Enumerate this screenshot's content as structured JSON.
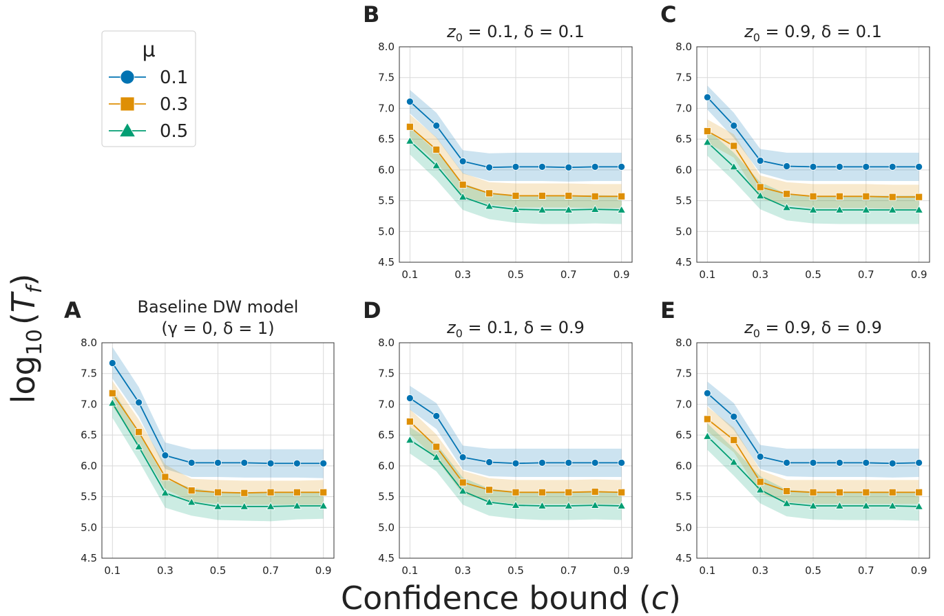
{
  "figure": {
    "xlabel_text": "Confidence bound (",
    "xlabel_var": "c",
    "xlabel_close": ")",
    "ylabel_prefix": "log",
    "ylabel_sub": "10",
    "ylabel_var": "T",
    "ylabel_varsub": "f"
  },
  "legend": {
    "title": "μ",
    "entries": [
      {
        "label": "0.1",
        "color": "#0173b2",
        "marker": "circle"
      },
      {
        "label": "0.3",
        "color": "#de8f05",
        "marker": "square"
      },
      {
        "label": "0.5",
        "color": "#029e73",
        "marker": "triangle"
      }
    ]
  },
  "chart_data": [
    {
      "panel": "A",
      "title_line1": "Baseline DW model",
      "title_line2": "(γ = 0, δ = 1)",
      "type": "line",
      "x": [
        0.1,
        0.2,
        0.3,
        0.4,
        0.5,
        0.6,
        0.7,
        0.8,
        0.9
      ],
      "xticks": [
        "0.1",
        "0.3",
        "0.5",
        "0.7",
        "0.9"
      ],
      "yticks": [
        "4.5",
        "5.0",
        "5.5",
        "6.0",
        "6.5",
        "7.0",
        "7.5",
        "8.0"
      ],
      "ylim": [
        4.5,
        8.0
      ],
      "grid": true,
      "series": [
        {
          "name": "0.1",
          "values": [
            7.67,
            7.03,
            6.17,
            6.05,
            6.05,
            6.05,
            6.04,
            6.04,
            6.04
          ],
          "lower": [
            7.42,
            6.8,
            5.95,
            5.82,
            5.82,
            5.81,
            5.81,
            5.81,
            5.8
          ],
          "upper": [
            7.93,
            7.28,
            6.38,
            6.27,
            6.27,
            6.27,
            6.27,
            6.27,
            6.27
          ]
        },
        {
          "name": "0.3",
          "values": [
            7.18,
            6.55,
            5.82,
            5.6,
            5.57,
            5.56,
            5.57,
            5.57,
            5.57
          ],
          "lower": [
            6.97,
            6.34,
            5.62,
            5.42,
            5.38,
            5.37,
            5.37,
            5.37,
            5.37
          ],
          "upper": [
            7.38,
            6.75,
            6.02,
            5.79,
            5.77,
            5.76,
            5.76,
            5.76,
            5.77
          ]
        },
        {
          "name": "0.5",
          "values": [
            7.02,
            6.31,
            5.56,
            5.41,
            5.34,
            5.34,
            5.34,
            5.35,
            5.35
          ],
          "lower": [
            6.78,
            6.08,
            5.32,
            5.19,
            5.12,
            5.11,
            5.1,
            5.13,
            5.14
          ],
          "upper": [
            7.25,
            6.54,
            5.78,
            5.64,
            5.57,
            5.57,
            5.56,
            5.58,
            5.58
          ]
        }
      ]
    },
    {
      "panel": "B",
      "title_z": "z",
      "title_z_sub": "0",
      "title_rest": " = 0.1, δ = 0.1",
      "type": "line",
      "x": [
        0.1,
        0.2,
        0.3,
        0.4,
        0.5,
        0.6,
        0.7,
        0.8,
        0.9
      ],
      "xticks": [
        "0.1",
        "0.3",
        "0.5",
        "0.7",
        "0.9"
      ],
      "yticks": [
        "4.5",
        "5.0",
        "5.5",
        "6.0",
        "6.5",
        "7.0",
        "7.5",
        "8.0"
      ],
      "ylim": [
        4.5,
        8.0
      ],
      "grid": true,
      "series": [
        {
          "name": "0.1",
          "values": [
            7.11,
            6.72,
            6.14,
            6.04,
            6.05,
            6.05,
            6.04,
            6.05,
            6.05
          ],
          "lower": [
            6.92,
            6.52,
            5.94,
            5.82,
            5.82,
            5.82,
            5.81,
            5.82,
            5.82
          ],
          "upper": [
            7.3,
            6.93,
            6.32,
            6.27,
            6.28,
            6.28,
            6.28,
            6.28,
            6.28
          ]
        },
        {
          "name": "0.3",
          "values": [
            6.7,
            6.33,
            5.76,
            5.62,
            5.58,
            5.58,
            5.58,
            5.57,
            5.57
          ],
          "lower": [
            6.5,
            6.13,
            5.57,
            5.44,
            5.39,
            5.39,
            5.39,
            5.38,
            5.38
          ],
          "upper": [
            6.9,
            6.53,
            5.95,
            5.8,
            5.78,
            5.78,
            5.78,
            5.77,
            5.77
          ]
        },
        {
          "name": "0.5",
          "values": [
            6.47,
            6.07,
            5.56,
            5.41,
            5.36,
            5.35,
            5.35,
            5.36,
            5.35
          ],
          "lower": [
            6.25,
            5.84,
            5.35,
            5.2,
            5.14,
            5.12,
            5.12,
            5.13,
            5.12
          ],
          "upper": [
            6.68,
            6.3,
            5.78,
            5.63,
            5.59,
            5.58,
            5.58,
            5.59,
            5.58
          ]
        }
      ]
    },
    {
      "panel": "C",
      "title_z": "z",
      "title_z_sub": "0",
      "title_rest": " = 0.9, δ = 0.1",
      "type": "line",
      "x": [
        0.1,
        0.2,
        0.3,
        0.4,
        0.5,
        0.6,
        0.7,
        0.8,
        0.9
      ],
      "xticks": [
        "0.1",
        "0.3",
        "0.5",
        "0.7",
        "0.9"
      ],
      "yticks": [
        "4.5",
        "5.0",
        "5.5",
        "6.0",
        "6.5",
        "7.0",
        "7.5",
        "8.0"
      ],
      "ylim": [
        4.5,
        8.0
      ],
      "grid": true,
      "series": [
        {
          "name": "0.1",
          "values": [
            7.18,
            6.72,
            6.15,
            6.06,
            6.05,
            6.05,
            6.05,
            6.05,
            6.05
          ],
          "lower": [
            6.98,
            6.52,
            5.95,
            5.83,
            5.82,
            5.82,
            5.82,
            5.82,
            5.82
          ],
          "upper": [
            7.37,
            6.93,
            6.34,
            6.28,
            6.28,
            6.28,
            6.28,
            6.28,
            6.28
          ]
        },
        {
          "name": "0.3",
          "values": [
            6.63,
            6.39,
            5.72,
            5.61,
            5.57,
            5.57,
            5.57,
            5.56,
            5.56
          ],
          "lower": [
            6.44,
            6.2,
            5.53,
            5.43,
            5.38,
            5.38,
            5.38,
            5.37,
            5.37
          ],
          "upper": [
            6.82,
            6.58,
            5.91,
            5.8,
            5.77,
            5.77,
            5.77,
            5.76,
            5.76
          ]
        },
        {
          "name": "0.5",
          "values": [
            6.45,
            6.05,
            5.58,
            5.39,
            5.35,
            5.35,
            5.35,
            5.35,
            5.35
          ],
          "lower": [
            6.23,
            5.82,
            5.36,
            5.18,
            5.13,
            5.12,
            5.12,
            5.12,
            5.12
          ],
          "upper": [
            6.66,
            6.28,
            5.8,
            5.61,
            5.58,
            5.58,
            5.58,
            5.58,
            5.58
          ]
        }
      ]
    },
    {
      "panel": "D",
      "title_z": "z",
      "title_z_sub": "0",
      "title_rest": " = 0.1, δ = 0.9",
      "type": "line",
      "x": [
        0.1,
        0.2,
        0.3,
        0.4,
        0.5,
        0.6,
        0.7,
        0.8,
        0.9
      ],
      "xticks": [
        "0.1",
        "0.3",
        "0.5",
        "0.7",
        "0.9"
      ],
      "yticks": [
        "4.5",
        "5.0",
        "5.5",
        "6.0",
        "6.5",
        "7.0",
        "7.5",
        "8.0"
      ],
      "ylim": [
        4.5,
        8.0
      ],
      "grid": true,
      "series": [
        {
          "name": "0.1",
          "values": [
            7.1,
            6.81,
            6.14,
            6.06,
            6.04,
            6.05,
            6.05,
            6.05,
            6.05
          ],
          "lower": [
            6.91,
            6.6,
            5.94,
            5.83,
            5.82,
            5.82,
            5.82,
            5.82,
            5.82
          ],
          "upper": [
            7.3,
            7.02,
            6.33,
            6.28,
            6.28,
            6.28,
            6.28,
            6.28,
            6.28
          ]
        },
        {
          "name": "0.3",
          "values": [
            6.72,
            6.31,
            5.73,
            5.61,
            5.57,
            5.57,
            5.57,
            5.58,
            5.57
          ],
          "lower": [
            6.52,
            6.11,
            5.54,
            5.43,
            5.38,
            5.38,
            5.38,
            5.38,
            5.38
          ],
          "upper": [
            6.92,
            6.51,
            5.92,
            5.8,
            5.77,
            5.77,
            5.77,
            5.78,
            5.77
          ]
        },
        {
          "name": "0.5",
          "values": [
            6.42,
            6.14,
            5.59,
            5.41,
            5.36,
            5.35,
            5.35,
            5.36,
            5.35
          ],
          "lower": [
            6.2,
            5.91,
            5.37,
            5.19,
            5.14,
            5.12,
            5.12,
            5.13,
            5.12
          ],
          "upper": [
            6.63,
            6.36,
            5.81,
            5.63,
            5.58,
            5.58,
            5.58,
            5.59,
            5.58
          ]
        }
      ]
    },
    {
      "panel": "E",
      "title_z": "z",
      "title_z_sub": "0",
      "title_rest": " = 0.9, δ = 0.9",
      "type": "line",
      "x": [
        0.1,
        0.2,
        0.3,
        0.4,
        0.5,
        0.6,
        0.7,
        0.8,
        0.9
      ],
      "xticks": [
        "0.1",
        "0.3",
        "0.5",
        "0.7",
        "0.9"
      ],
      "yticks": [
        "4.5",
        "5.0",
        "5.5",
        "6.0",
        "6.5",
        "7.0",
        "7.5",
        "8.0"
      ],
      "ylim": [
        4.5,
        8.0
      ],
      "grid": true,
      "series": [
        {
          "name": "0.1",
          "values": [
            7.18,
            6.8,
            6.15,
            6.05,
            6.05,
            6.05,
            6.05,
            6.04,
            6.05
          ],
          "lower": [
            6.98,
            6.58,
            5.95,
            5.83,
            5.82,
            5.82,
            5.82,
            5.81,
            5.82
          ],
          "upper": [
            7.37,
            7.02,
            6.34,
            6.28,
            6.28,
            6.28,
            6.28,
            6.28,
            6.28
          ]
        },
        {
          "name": "0.3",
          "values": [
            6.76,
            6.42,
            5.74,
            5.59,
            5.57,
            5.57,
            5.57,
            5.57,
            5.57
          ],
          "lower": [
            6.56,
            6.22,
            5.55,
            5.41,
            5.38,
            5.38,
            5.38,
            5.38,
            5.38
          ],
          "upper": [
            6.96,
            6.62,
            5.93,
            5.77,
            5.77,
            5.77,
            5.77,
            5.77,
            5.77
          ]
        },
        {
          "name": "0.5",
          "values": [
            6.48,
            6.06,
            5.61,
            5.39,
            5.35,
            5.35,
            5.35,
            5.35,
            5.34
          ],
          "lower": [
            6.26,
            5.84,
            5.39,
            5.18,
            5.13,
            5.12,
            5.12,
            5.12,
            5.11
          ],
          "upper": [
            6.69,
            6.28,
            5.83,
            5.61,
            5.58,
            5.58,
            5.58,
            5.58,
            5.57
          ]
        }
      ]
    }
  ]
}
